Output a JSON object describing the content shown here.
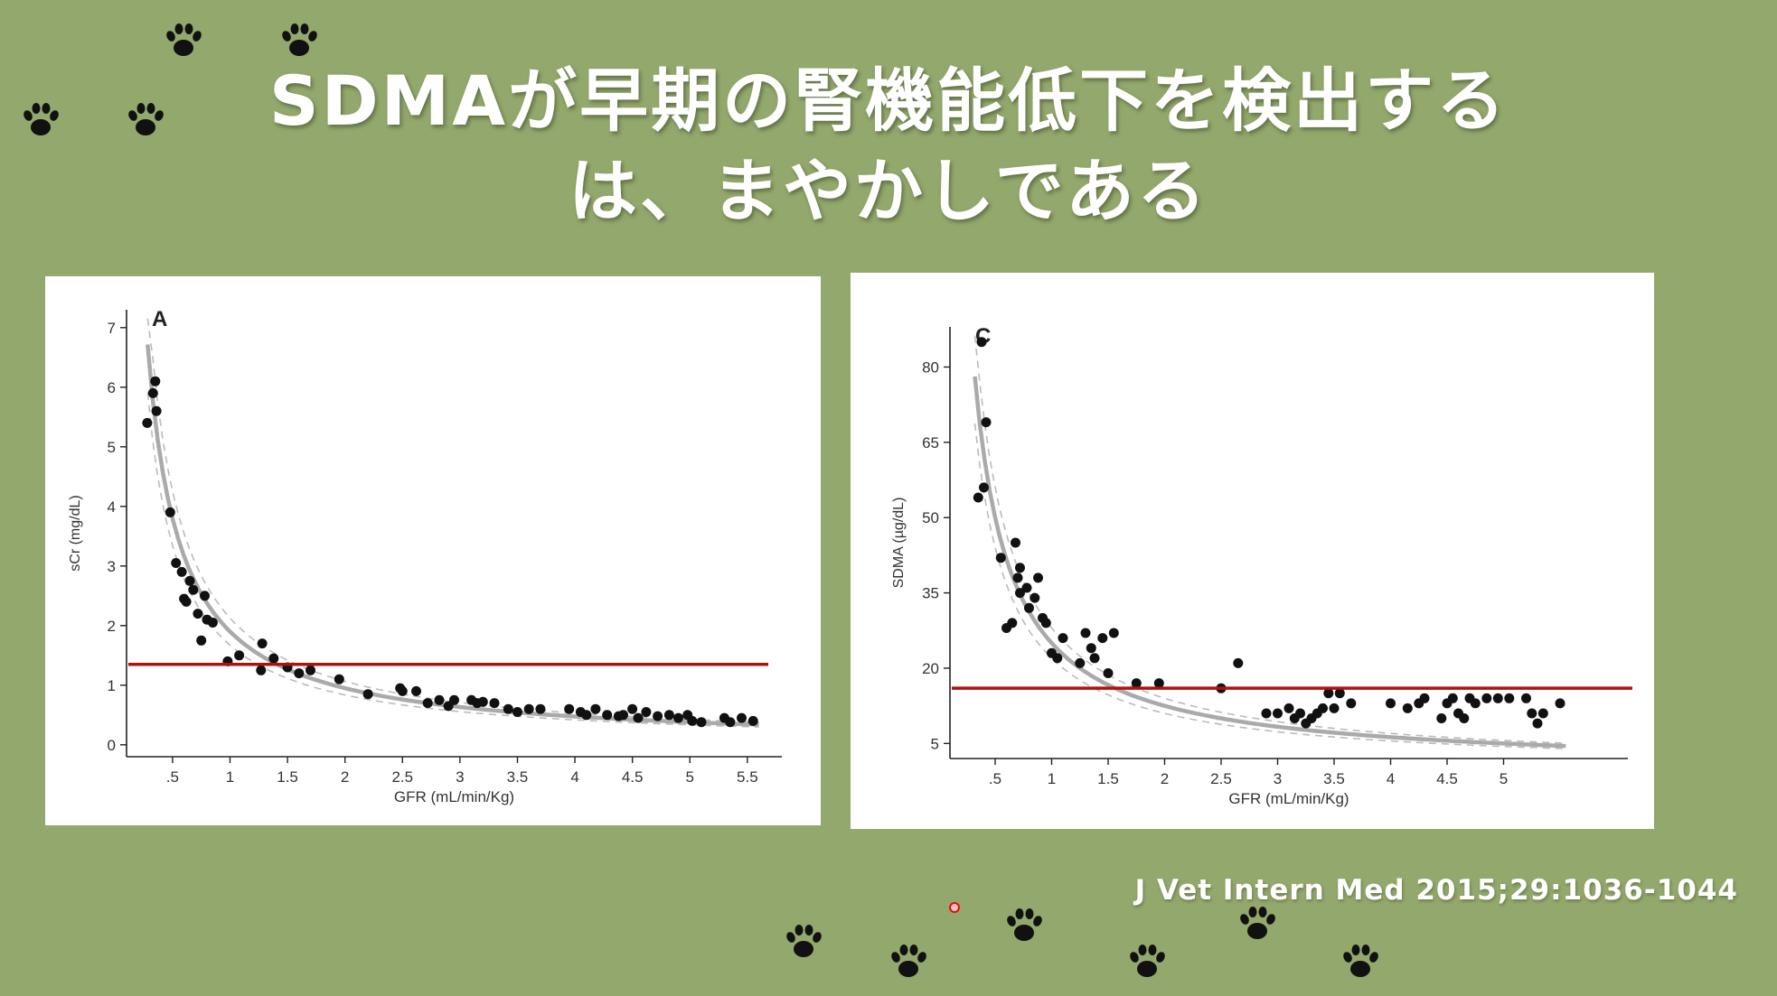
{
  "slide": {
    "title_line1": "SDMAが早期の腎機能低下を検出する",
    "title_line2": "は、まやかしである",
    "citation": "J Vet Intern Med 2015;29:1036-1044",
    "background_color": "#93a86c",
    "paw_icon": "paw-print-icon"
  },
  "chart_data": [
    {
      "type": "scatter",
      "panel_label": "A",
      "xlabel": "GFR (mL/min/Kg)",
      "ylabel": "sCr (mg/dL)",
      "xlim": [
        0.1,
        5.8
      ],
      "ylim": [
        -0.2,
        7.3
      ],
      "x_ticks": [
        0.5,
        1,
        1.5,
        2,
        2.5,
        3,
        3.5,
        4,
        4.5,
        5,
        5.5
      ],
      "x_tick_labels": [
        ".5",
        "1",
        "1.5",
        "2",
        "2.5",
        "3",
        "3.5",
        "4",
        "4.5",
        "5",
        "5.5"
      ],
      "y_ticks": [
        0,
        1,
        2,
        3,
        4,
        5,
        6,
        7
      ],
      "y_tick_labels": [
        "0",
        "1",
        "2",
        "3",
        "4",
        "5",
        "6",
        "7"
      ],
      "reference_line": {
        "y": 1.35,
        "color": "#b01010"
      },
      "fit_curve": {
        "form": "y = a / x",
        "a": 1.9,
        "color": "#aaaaaa"
      },
      "points_color": "#111111",
      "x": [
        0.28,
        0.33,
        0.35,
        0.36,
        0.48,
        0.53,
        0.58,
        0.6,
        0.62,
        0.65,
        0.68,
        0.72,
        0.75,
        0.78,
        0.8,
        0.85,
        0.98,
        1.08,
        1.27,
        1.28,
        1.38,
        1.5,
        1.6,
        1.7,
        1.95,
        2.2,
        2.48,
        2.5,
        2.62,
        2.72,
        2.82,
        2.9,
        2.95,
        3.1,
        3.15,
        3.2,
        3.3,
        3.42,
        3.5,
        3.6,
        3.7,
        3.95,
        4.05,
        4.1,
        4.18,
        4.28,
        4.38,
        4.42,
        4.5,
        4.55,
        4.62,
        4.72,
        4.82,
        4.9,
        4.98,
        5.02,
        5.1,
        5.3,
        5.35,
        5.45,
        5.55
      ],
      "y": [
        5.4,
        5.9,
        6.1,
        5.6,
        3.9,
        3.05,
        2.9,
        2.45,
        2.4,
        2.75,
        2.6,
        2.2,
        1.75,
        2.5,
        2.1,
        2.05,
        1.4,
        1.5,
        1.25,
        1.7,
        1.45,
        1.3,
        1.2,
        1.25,
        1.1,
        0.85,
        0.95,
        0.9,
        0.9,
        0.7,
        0.75,
        0.65,
        0.75,
        0.75,
        0.7,
        0.72,
        0.7,
        0.6,
        0.55,
        0.6,
        0.6,
        0.6,
        0.55,
        0.5,
        0.6,
        0.5,
        0.48,
        0.5,
        0.6,
        0.45,
        0.55,
        0.48,
        0.5,
        0.45,
        0.5,
        0.4,
        0.38,
        0.45,
        0.38,
        0.45,
        0.4
      ]
    },
    {
      "type": "scatter",
      "panel_label": "C",
      "xlabel": "GFR (mL/min/Kg)",
      "ylabel": "SDMA (µg/dL)",
      "xlim": [
        0.1,
        6.1
      ],
      "ylim": [
        2,
        88
      ],
      "x_ticks": [
        0.5,
        1,
        1.5,
        2,
        2.5,
        3,
        3.5,
        4,
        4.5,
        5
      ],
      "x_tick_labels": [
        ".5",
        "1",
        "1.5",
        "2",
        "2.5",
        "3",
        "3.5",
        "4",
        "4.5",
        "5"
      ],
      "y_ticks": [
        5,
        20,
        35,
        50,
        65,
        80
      ],
      "y_tick_labels": [
        "5",
        "20",
        "35",
        "50",
        "65",
        "80"
      ],
      "reference_line": {
        "y": 16,
        "color": "#b01010"
      },
      "fit_curve": {
        "form": "y = a / x",
        "a": 25,
        "color": "#aaaaaa"
      },
      "points_color": "#111111",
      "x": [
        0.35,
        0.38,
        0.4,
        0.42,
        0.55,
        0.6,
        0.65,
        0.68,
        0.7,
        0.72,
        0.72,
        0.78,
        0.8,
        0.85,
        0.88,
        0.92,
        0.95,
        1.0,
        1.05,
        1.1,
        1.25,
        1.3,
        1.35,
        1.38,
        1.45,
        1.5,
        1.55,
        1.75,
        1.95,
        2.5,
        2.65,
        2.9,
        3.0,
        3.1,
        3.15,
        3.2,
        3.25,
        3.3,
        3.35,
        3.4,
        3.45,
        3.5,
        3.55,
        3.65,
        4.0,
        4.15,
        4.25,
        4.3,
        4.45,
        4.5,
        4.55,
        4.6,
        4.65,
        4.7,
        4.75,
        4.85,
        4.95,
        5.05,
        5.2,
        5.25,
        5.3,
        5.35,
        5.5
      ],
      "y": [
        54,
        85,
        56,
        69,
        42,
        28,
        29,
        45,
        38,
        35,
        40,
        36,
        32,
        34,
        38,
        30,
        29,
        23,
        22,
        26,
        21,
        27,
        24,
        22,
        26,
        19,
        27,
        17,
        17,
        16,
        21,
        11,
        11,
        12,
        10,
        11,
        9,
        10,
        11,
        12,
        15,
        12,
        15,
        13,
        13,
        12,
        13,
        14,
        10,
        13,
        14,
        11,
        10,
        14,
        13,
        14,
        14,
        14,
        14,
        11,
        9,
        11,
        13
      ]
    }
  ]
}
